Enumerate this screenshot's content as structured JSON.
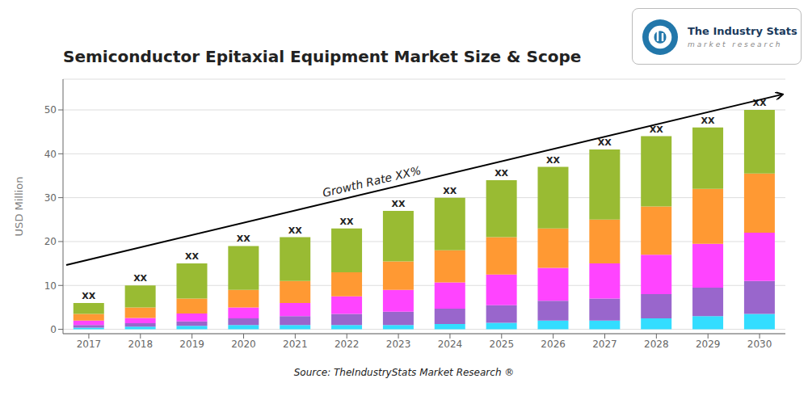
{
  "chart_data": {
    "type": "bar",
    "title": "Semiconductor Epitaxial Equipment Market Size & Scope",
    "ylabel": "USD Million",
    "categories": [
      "2017",
      "2018",
      "2019",
      "2020",
      "2021",
      "2022",
      "2023",
      "2024",
      "2025",
      "2026",
      "2027",
      "2028",
      "2029",
      "2030"
    ],
    "series": [
      {
        "color": "#33DDFF",
        "values": [
          0.4,
          0.6,
          0.8,
          1.0,
          1.0,
          1.0,
          1.0,
          1.2,
          1.5,
          2.0,
          2.0,
          2.5,
          3.0,
          3.5
        ]
      },
      {
        "color": "#9966CC",
        "values": [
          0.6,
          0.8,
          1.0,
          1.5,
          2.0,
          2.5,
          3.0,
          3.5,
          4.0,
          4.5,
          5.0,
          5.5,
          6.5,
          7.5
        ]
      },
      {
        "color": "#FF44FF",
        "values": [
          1.0,
          1.2,
          1.8,
          2.5,
          3.0,
          4.0,
          5.0,
          6.0,
          7.0,
          7.5,
          8.0,
          9.0,
          10.0,
          11.0
        ]
      },
      {
        "color": "#FF9933",
        "values": [
          1.5,
          2.4,
          3.4,
          4.0,
          5.0,
          5.5,
          6.5,
          7.3,
          8.5,
          9.0,
          10.0,
          11.0,
          12.5,
          13.5
        ]
      },
      {
        "color": "#99BB33",
        "values": [
          2.5,
          5.0,
          8.0,
          10.0,
          10.0,
          10.0,
          11.5,
          12.0,
          13.0,
          14.0,
          16.0,
          16.0,
          14.0,
          14.5
        ]
      }
    ],
    "stacked": true,
    "ylim": [
      -1,
      57
    ],
    "yticks": [
      0,
      10,
      20,
      30,
      40,
      50
    ],
    "grid": true,
    "bar_label": "XX",
    "annotations": [
      "Growth Rate XX%"
    ],
    "source": "Source: TheIndustryStats Market Research ®",
    "logo": [
      "The Industry Stats",
      "m a r k e t   r e s e a r c h"
    ]
  }
}
